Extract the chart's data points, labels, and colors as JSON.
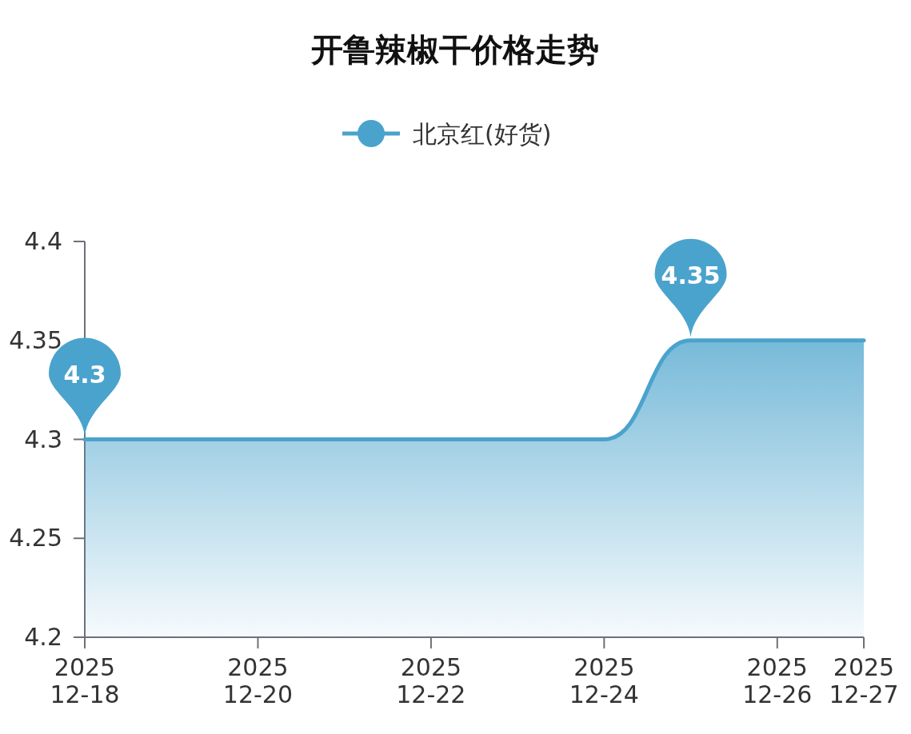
{
  "chart_data": {
    "type": "area",
    "title": "开鲁辣椒干价格走势",
    "categories": [
      "2025\n12-18",
      null,
      "2025\n12-20",
      null,
      "2025\n12-22",
      null,
      "2025\n12-24",
      null,
      "2025\n12-26",
      "2025\n12-27"
    ],
    "series": [
      {
        "name": "北京红(好货)",
        "color": "#4aa3cc",
        "values": [
          4.3,
          4.3,
          4.3,
          4.3,
          4.3,
          4.3,
          4.3,
          4.35,
          4.35,
          4.35
        ],
        "value_labels": [
          "4.3",
          null,
          null,
          null,
          null,
          null,
          null,
          "4.35",
          null,
          null
        ]
      }
    ],
    "ylim": [
      4.2,
      4.4
    ],
    "yticks": [
      4.2,
      4.25,
      4.3,
      4.35,
      4.4
    ],
    "legend": "top"
  }
}
